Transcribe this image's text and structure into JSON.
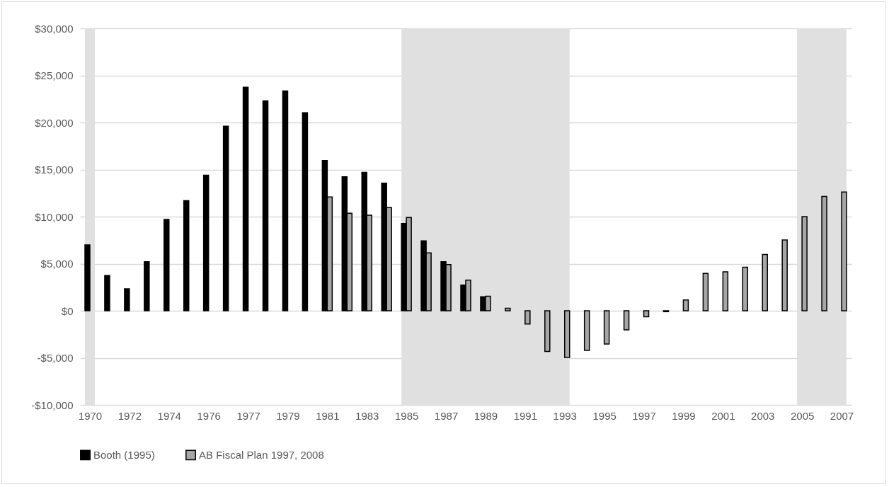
{
  "chart_data": {
    "type": "bar",
    "categories": [
      "1970",
      null,
      "1972",
      null,
      "1974",
      null,
      "1976",
      null,
      "1977",
      null,
      "1979",
      null,
      "1981",
      null,
      "1983",
      null,
      "1985",
      null,
      "1987",
      null,
      "1989",
      null,
      "1991",
      null,
      "1993",
      null,
      "1995",
      null,
      "1997",
      null,
      "1999",
      null,
      "2001",
      null,
      "2003",
      null,
      "2005",
      null,
      "2007"
    ],
    "series": [
      {
        "name": "Booth (1995)",
        "color": "#000000",
        "values": [
          7000,
          3750,
          2330,
          5200,
          9700,
          11700,
          14400,
          19600,
          23750,
          22300,
          23350,
          21030,
          15950,
          14230,
          14700,
          13550,
          9260,
          7420,
          5200,
          2720,
          1480,
          null,
          null,
          null,
          null,
          null,
          null,
          null,
          null,
          null,
          null,
          null,
          null,
          null,
          null,
          null,
          null,
          null,
          null
        ]
      },
      {
        "name": "AB Fiscal Plan 1997, 2008",
        "color": "#a6a6a6",
        "values": [
          null,
          null,
          null,
          null,
          null,
          null,
          null,
          null,
          null,
          null,
          null,
          null,
          12080,
          10350,
          10150,
          10950,
          9900,
          6140,
          4900,
          3260,
          1540,
          270,
          -1410,
          -4320,
          -4960,
          -4210,
          -3530,
          -2030,
          -640,
          -100,
          1140,
          3960,
          4130,
          4630,
          5970,
          7520,
          10000,
          12150,
          12620
        ]
      }
    ],
    "ylim": [
      -10000,
      30000
    ],
    "yticks": [
      {
        "value": -10000,
        "label": "-$10,000"
      },
      {
        "value": -5000,
        "label": "-$5,000"
      },
      {
        "value": 0,
        "label": "$0"
      },
      {
        "value": 5000,
        "label": "$5,000"
      },
      {
        "value": 10000,
        "label": "$10,000"
      },
      {
        "value": 15000,
        "label": "$15,000"
      },
      {
        "value": 20000,
        "label": "$20,000"
      },
      {
        "value": 25000,
        "label": "$25,000"
      },
      {
        "value": 30000,
        "label": "$30,000"
      }
    ],
    "bands": [
      {
        "axis": "x",
        "from": "1970",
        "to": "1970",
        "color": "#e0e0e0"
      },
      {
        "axis": "x",
        "from": "1985",
        "to": "1993",
        "color": "#e0e0e0"
      },
      {
        "axis": "x",
        "from": "2005",
        "to": "2007",
        "color": "#e0e0e0"
      }
    ],
    "grid": "y",
    "legend": "bottom"
  }
}
